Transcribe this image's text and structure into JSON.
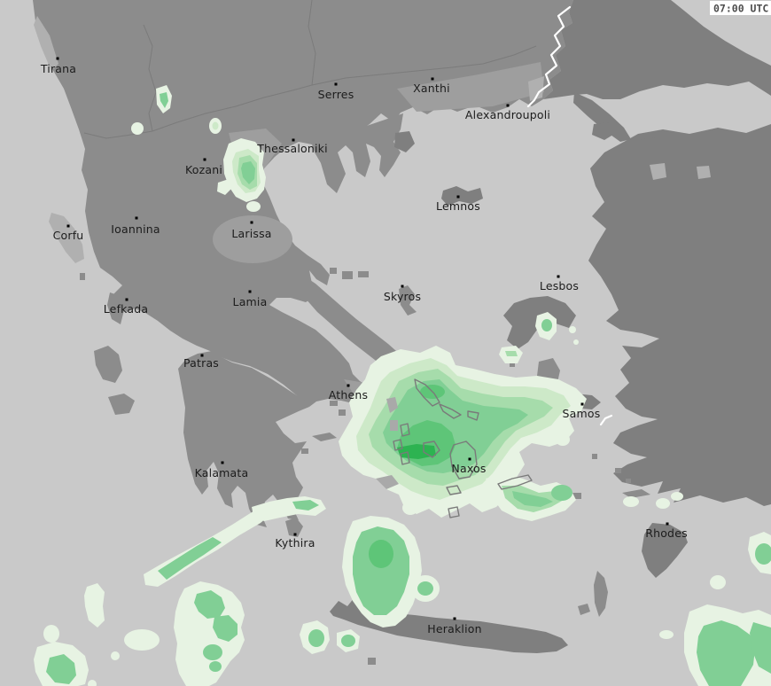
{
  "header": {
    "timestamp": "07:00 UTC"
  },
  "map": {
    "type": "precipitation-weather-map",
    "region": "Greece and the Aegean Sea",
    "cities": [
      {
        "name": "Tirana",
        "dot": [
          65,
          66
        ],
        "label": [
          66,
          82
        ]
      },
      {
        "name": "Serres",
        "dot": [
          379,
          95
        ],
        "label": [
          379,
          111
        ]
      },
      {
        "name": "Xanthi",
        "dot": [
          488,
          89
        ],
        "label": [
          487,
          104
        ]
      },
      {
        "name": "Alexandroupoli",
        "dot": [
          573,
          119
        ],
        "label": [
          573,
          134
        ]
      },
      {
        "name": "Thessaloniki",
        "dot": [
          331,
          158
        ],
        "label": [
          330,
          172
        ]
      },
      {
        "name": "Kozani",
        "dot": [
          231,
          180
        ],
        "label": [
          230,
          196
        ]
      },
      {
        "name": "Corfu",
        "dot": [
          77,
          255
        ],
        "label": [
          77,
          270
        ]
      },
      {
        "name": "Ioannina",
        "dot": [
          154,
          246
        ],
        "label": [
          153,
          263
        ]
      },
      {
        "name": "Larissa",
        "dot": [
          284,
          251
        ],
        "label": [
          284,
          268
        ]
      },
      {
        "name": "Lemnos",
        "dot": [
          517,
          222
        ],
        "label": [
          517,
          237
        ]
      },
      {
        "name": "Lamia",
        "dot": [
          282,
          329
        ],
        "label": [
          282,
          345
        ]
      },
      {
        "name": "Skyros",
        "dot": [
          454,
          323
        ],
        "label": [
          454,
          339
        ]
      },
      {
        "name": "Lesbos",
        "dot": [
          630,
          312
        ],
        "label": [
          631,
          327
        ]
      },
      {
        "name": "Lefkada",
        "dot": [
          143,
          338
        ],
        "label": [
          142,
          353
        ]
      },
      {
        "name": "Patras",
        "dot": [
          228,
          401
        ],
        "label": [
          227,
          414
        ]
      },
      {
        "name": "Athens",
        "dot": [
          393,
          435
        ],
        "label": [
          393,
          450
        ]
      },
      {
        "name": "Samos",
        "dot": [
          657,
          456
        ],
        "label": [
          656,
          471
        ]
      },
      {
        "name": "Kalamata",
        "dot": [
          251,
          522
        ],
        "label": [
          250,
          538
        ]
      },
      {
        "name": "Naxos",
        "dot": [
          530,
          518
        ],
        "label": [
          529,
          533
        ]
      },
      {
        "name": "Kythira",
        "dot": [
          333,
          603
        ],
        "label": [
          333,
          617
        ]
      },
      {
        "name": "Rhodes",
        "dot": [
          753,
          591
        ],
        "label": [
          752,
          606
        ]
      },
      {
        "name": "Heraklion",
        "dot": [
          513,
          698
        ],
        "label": [
          513,
          714
        ]
      }
    ],
    "precipitation_areas": [
      "cyclades-central-aegean",
      "north-of-crete",
      "kythira-antikythera-band",
      "thessaloniki-kozani",
      "chios-spots",
      "southwest-sea-scatter",
      "southeast-corner",
      "astypalea-arm"
    ]
  },
  "colors": {
    "sea": "#c9c9c9",
    "land": "#8c8c8c",
    "land_dark": "#7f7f7f",
    "land_light": "#b0b0b0",
    "plain": "#9e9e9e",
    "border": "#ffffff",
    "label": "#1c1c1c",
    "precip": [
      "#e7f3e3",
      "#cde9c8",
      "#a6dcab",
      "#81cf95",
      "#5ec578",
      "#2db351"
    ]
  }
}
